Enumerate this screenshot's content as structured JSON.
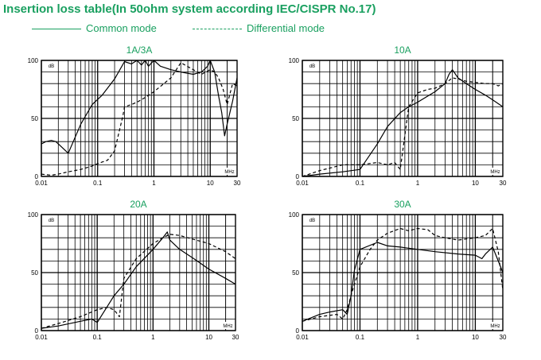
{
  "title": "Insertion loss table(In 50ohm system according IEC/CISPR No.17)",
  "legend": {
    "common": "Common mode",
    "differential": "Differential mode"
  },
  "colors": {
    "accent": "#1aa060",
    "grid": "#000000",
    "curve": "#000000"
  },
  "chart_data": [
    {
      "type": "line",
      "title": "1A/3A",
      "unit_label": "dB",
      "freq_label": "MHz",
      "xscale": "log",
      "xlim": [
        0.01,
        30
      ],
      "ylim": [
        0,
        100
      ],
      "xticks": [
        "0.01",
        "0.1",
        "1",
        "10",
        "30"
      ],
      "yticks": [
        "0",
        "50",
        "100"
      ],
      "series": [
        {
          "name": "Common mode",
          "style": "solid",
          "x": [
            0.01,
            0.012,
            0.015,
            0.018,
            0.02,
            0.03,
            0.05,
            0.08,
            0.12,
            0.2,
            0.3,
            0.4,
            0.5,
            0.6,
            0.7,
            0.8,
            1.0,
            1.3,
            2,
            3,
            5,
            7,
            9,
            10,
            12,
            14,
            16,
            18,
            20,
            25,
            30
          ],
          "y": [
            28,
            30,
            31,
            30,
            28,
            20,
            45,
            62,
            70,
            84,
            99,
            97,
            100,
            96,
            100,
            95,
            100,
            95,
            92,
            90,
            88,
            90,
            95,
            100,
            90,
            70,
            55,
            35,
            45,
            65,
            85
          ]
        },
        {
          "name": "Differential mode",
          "style": "dashed",
          "x": [
            0.01,
            0.015,
            0.02,
            0.03,
            0.05,
            0.08,
            0.1,
            0.15,
            0.2,
            0.28,
            0.3,
            0.4,
            0.5,
            0.7,
            1.0,
            1.5,
            2.0,
            2.5,
            3,
            5,
            7,
            10,
            12,
            14,
            17,
            20,
            25,
            30
          ],
          "y": [
            2,
            1,
            2,
            4,
            6,
            9,
            11,
            14,
            22,
            52,
            60,
            62,
            64,
            68,
            73,
            80,
            85,
            92,
            98,
            92,
            88,
            92,
            90,
            85,
            75,
            62,
            80,
            78
          ]
        }
      ]
    },
    {
      "type": "line",
      "title": "10A",
      "unit_label": "dB",
      "freq_label": "MHz",
      "xscale": "log",
      "xlim": [
        0.01,
        30
      ],
      "ylim": [
        0,
        100
      ],
      "xticks": [
        "0.01",
        "0.1",
        "1",
        "10",
        "30"
      ],
      "yticks": [
        "0",
        "50",
        "100"
      ],
      "series": [
        {
          "name": "Common mode",
          "style": "solid",
          "x": [
            0.01,
            0.02,
            0.05,
            0.1,
            0.2,
            0.3,
            0.5,
            0.7,
            1,
            2,
            3,
            3.5,
            4,
            5,
            7,
            10,
            15,
            20,
            30
          ],
          "y": [
            0,
            2,
            4,
            6,
            28,
            43,
            55,
            60,
            64,
            73,
            80,
            88,
            92,
            85,
            80,
            75,
            70,
            66,
            60
          ]
        },
        {
          "name": "Differential mode",
          "style": "dashed",
          "x": [
            0.01,
            0.02,
            0.05,
            0.1,
            0.2,
            0.3,
            0.4,
            0.5,
            0.7,
            1,
            1.5,
            2,
            3,
            4,
            5,
            7,
            10,
            15,
            20,
            25,
            30
          ],
          "y": [
            0,
            5,
            10,
            10,
            12,
            10,
            12,
            6,
            60,
            72,
            75,
            76,
            80,
            85,
            84,
            82,
            81,
            80,
            80,
            78,
            80
          ]
        }
      ]
    },
    {
      "type": "line",
      "title": "20A",
      "unit_label": "dB",
      "freq_label": "MHz",
      "xscale": "log",
      "xlim": [
        0.01,
        30
      ],
      "ylim": [
        0,
        100
      ],
      "xticks": [
        "0.01",
        "0.1",
        "1",
        "10",
        "30"
      ],
      "yticks": [
        "0",
        "50",
        "100"
      ],
      "series": [
        {
          "name": "Common mode",
          "style": "solid",
          "x": [
            0.01,
            0.02,
            0.05,
            0.08,
            0.1,
            0.2,
            0.3,
            0.5,
            1,
            1.5,
            1.8,
            2,
            3,
            5,
            10,
            20,
            30
          ],
          "y": [
            2,
            4,
            8,
            10,
            7,
            30,
            40,
            55,
            70,
            80,
            85,
            78,
            70,
            63,
            53,
            45,
            40
          ]
        },
        {
          "name": "Differential mode",
          "style": "dashed",
          "x": [
            0.01,
            0.02,
            0.05,
            0.1,
            0.15,
            0.2,
            0.25,
            0.3,
            0.5,
            1,
            1.5,
            2,
            3,
            5,
            10,
            20,
            30
          ],
          "y": [
            2,
            6,
            12,
            18,
            20,
            18,
            12,
            45,
            62,
            75,
            80,
            83,
            82,
            79,
            75,
            68,
            62
          ]
        }
      ]
    },
    {
      "type": "line",
      "title": "30A",
      "unit_label": "dB",
      "freq_label": "MHz",
      "xscale": "log",
      "xlim": [
        0.01,
        30
      ],
      "ylim": [
        0,
        100
      ],
      "xticks": [
        "0.01",
        "0.1",
        "1",
        "10",
        "30"
      ],
      "yticks": [
        "0",
        "50",
        "100"
      ],
      "series": [
        {
          "name": "Common mode",
          "style": "solid",
          "x": [
            0.01,
            0.02,
            0.03,
            0.05,
            0.06,
            0.07,
            0.08,
            0.1,
            0.2,
            0.3,
            0.5,
            1,
            2,
            5,
            10,
            13,
            15,
            20,
            25,
            30
          ],
          "y": [
            8,
            14,
            16,
            18,
            14,
            30,
            52,
            70,
            76,
            73,
            72,
            70,
            68,
            66,
            65,
            62,
            66,
            72,
            60,
            50
          ]
        },
        {
          "name": "Differential mode",
          "style": "dashed",
          "x": [
            0.01,
            0.02,
            0.04,
            0.05,
            0.06,
            0.07,
            0.08,
            0.1,
            0.15,
            0.2,
            0.3,
            0.5,
            0.7,
            1,
            1.5,
            2,
            3,
            5,
            10,
            15,
            20,
            25,
            30
          ],
          "y": [
            8,
            12,
            14,
            10,
            18,
            30,
            40,
            55,
            70,
            78,
            84,
            88,
            86,
            88,
            87,
            82,
            80,
            78,
            80,
            82,
            88,
            68,
            35
          ]
        }
      ]
    }
  ]
}
